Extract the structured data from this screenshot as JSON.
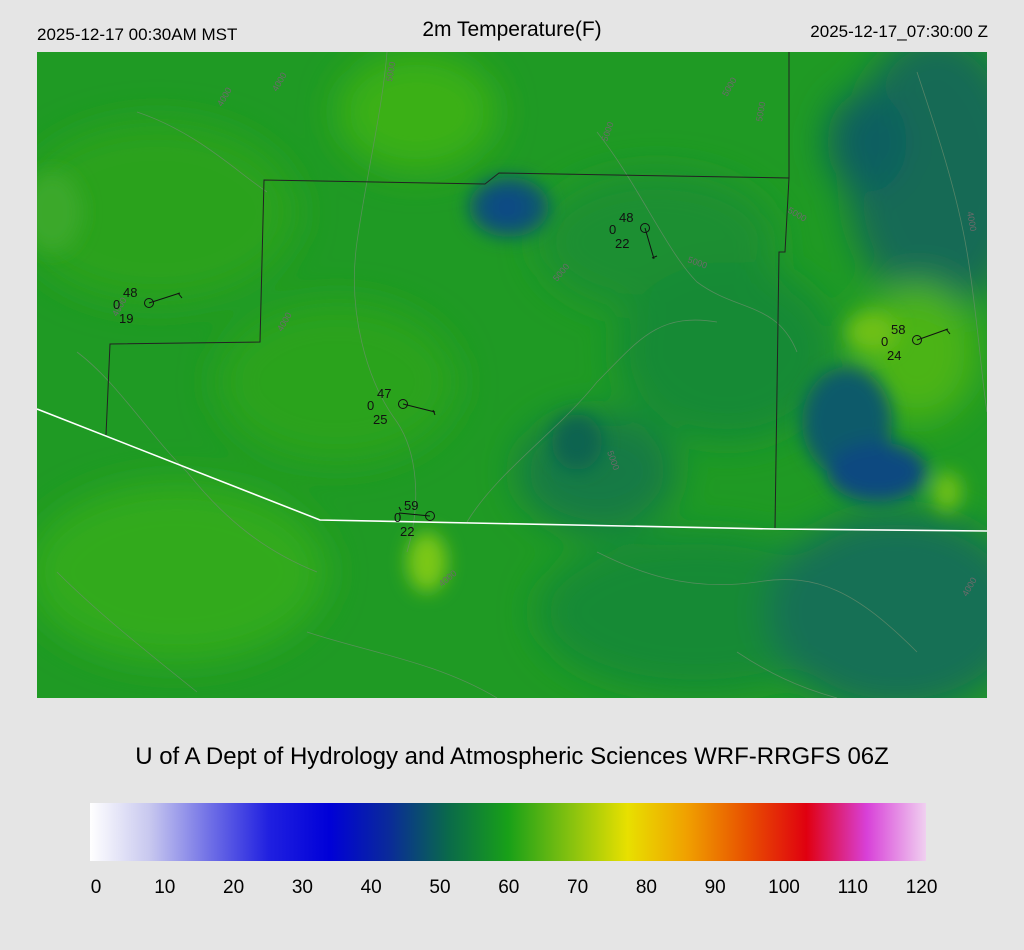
{
  "header": {
    "local_time": "2025-12-17 00:30AM MST",
    "title": "2m Temperature(F)",
    "utc_time": "2025-12-17_07:30:00 Z"
  },
  "footer": {
    "title": "U of A Dept of Hydrology and Atmospheric Sciences WRF-RRGFS 06Z"
  },
  "colorbar": {
    "ticks": [
      "0",
      "10",
      "20",
      "30",
      "40",
      "50",
      "60",
      "70",
      "80",
      "90",
      "100",
      "110",
      "120"
    ],
    "colors": [
      "#ffffff",
      "#c8c8ef",
      "#7070e6",
      "#2020e0",
      "#0000d8",
      "#0a2a9a",
      "#0a6a4a",
      "#18a018",
      "#80c010",
      "#e8e000",
      "#f0a000",
      "#e85000",
      "#e00010",
      "#d840d8",
      "#f0d0f0"
    ]
  },
  "stations": [
    {
      "temp": "48",
      "wind": "0",
      "dew": "19"
    },
    {
      "temp": "48",
      "wind": "0",
      "dew": "22"
    },
    {
      "temp": "47",
      "wind": "0",
      "dew": "25"
    },
    {
      "temp": "59",
      "wind": "0",
      "dew": "22"
    },
    {
      "temp": "58",
      "wind": "0",
      "dew": "24"
    }
  ],
  "contour_labels": [
    "4000",
    "4000",
    "5000",
    "5000",
    "5000",
    "5000",
    "5000",
    "5000",
    "4000",
    "4000",
    "4000",
    "5000",
    "4000",
    "4000",
    "5000"
  ]
}
